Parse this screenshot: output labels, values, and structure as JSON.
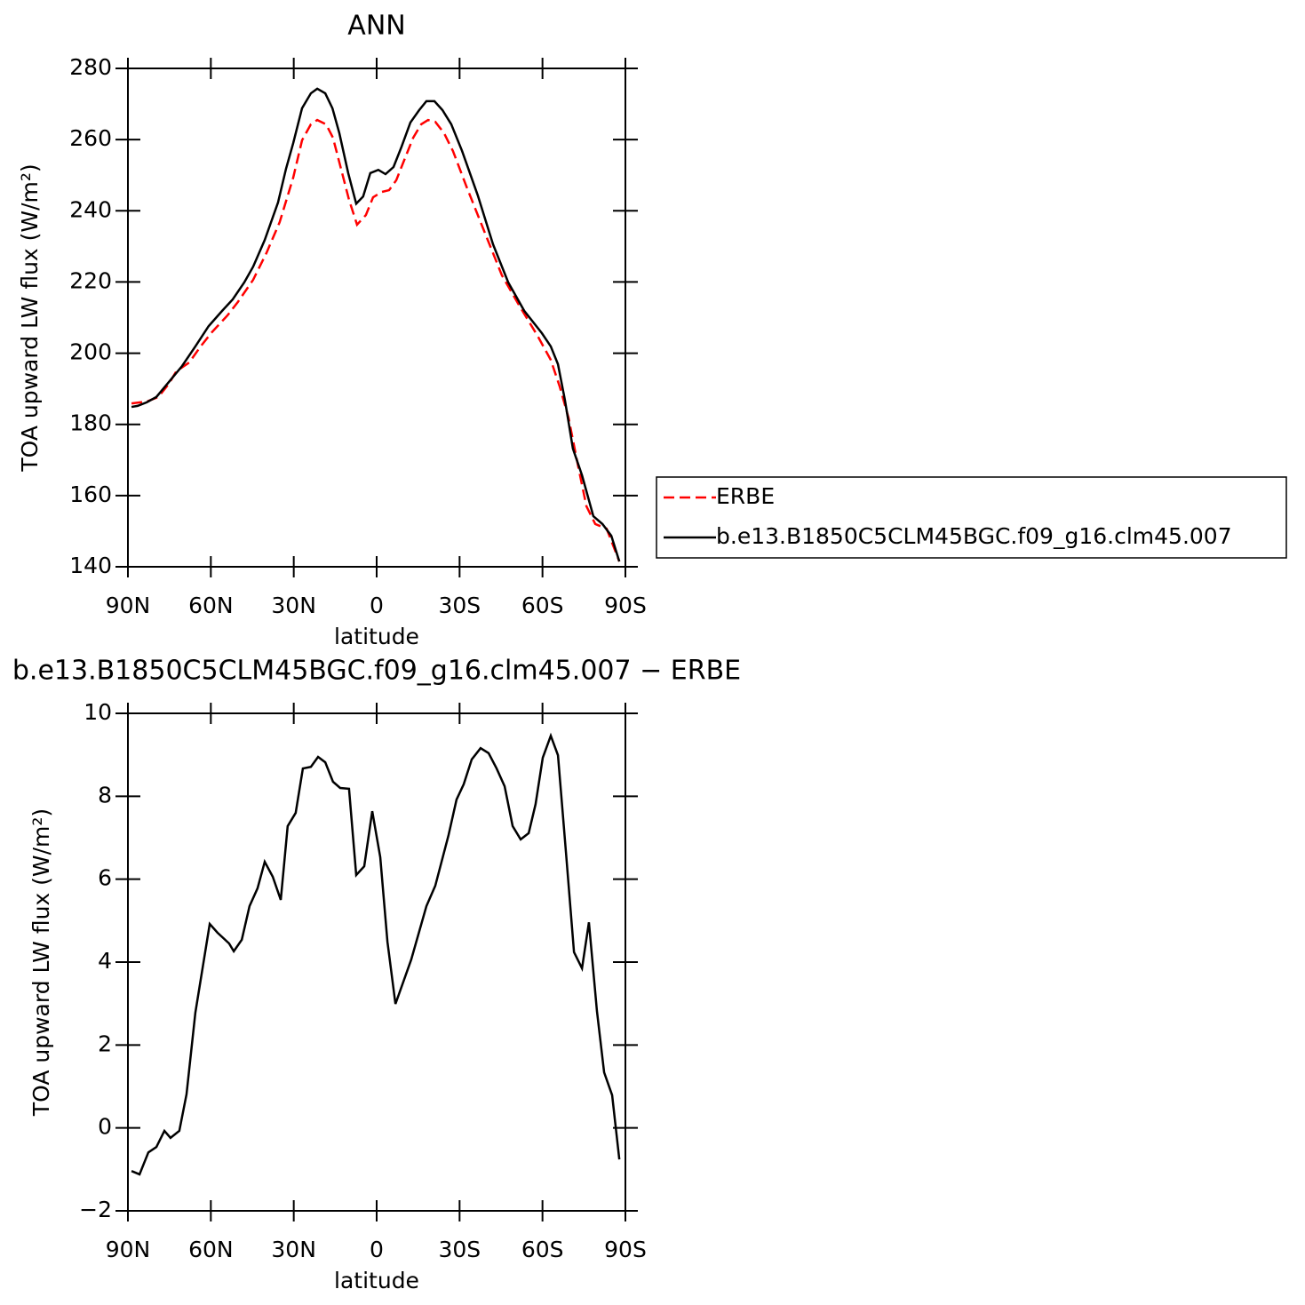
{
  "chart_data": [
    {
      "type": "line",
      "title": "ANN",
      "x_label": "latitude",
      "y_label": "TOA upward LW flux (W/m²)",
      "xlim": [
        90,
        -90
      ],
      "xticks": [
        {
          "value": 90,
          "label": "90N"
        },
        {
          "value": 60,
          "label": "60N"
        },
        {
          "value": 30,
          "label": "30N"
        },
        0,
        {
          "value": -30,
          "label": "30S"
        },
        {
          "value": -60,
          "label": "60S"
        },
        {
          "value": -90,
          "label": "90S"
        }
      ],
      "ylim": [
        140,
        280
      ],
      "yticks": [
        140,
        160,
        180,
        200,
        220,
        240,
        260,
        280
      ],
      "series": [
        {
          "name": "ERBE",
          "color": "#ff0000",
          "style": "dashed",
          "x": [
            88.7,
            83.2,
            79,
            75.2,
            72.5,
            67.8,
            63.7,
            59.6,
            54,
            50.2,
            44.7,
            39.9,
            35.1,
            30.2,
            27,
            23.8,
            21.5,
            18.3,
            15.8,
            12.9,
            10,
            7.1,
            3.9,
            1.3,
            -1.9,
            -4.5,
            -7.1,
            -10,
            -13.2,
            -16.1,
            -18.6,
            -21.2,
            -24.4,
            -27.6,
            -32.5,
            -38.9,
            -45.3,
            -51.8,
            -58.2,
            -63,
            -66.2,
            -69.4,
            -72.6,
            -75.9,
            -79.1,
            -83.2,
            -87.8
          ],
          "values": [
            185.9,
            186.4,
            187.7,
            191.4,
            194.9,
            197.4,
            201.9,
            205.9,
            210.6,
            214.4,
            220.6,
            228.1,
            236.8,
            249.3,
            259.8,
            264.3,
            265.5,
            264.3,
            260.5,
            251.8,
            243.1,
            236.1,
            238.8,
            243.8,
            245.3,
            245.8,
            248.6,
            254.3,
            260.5,
            264.3,
            265.5,
            265,
            261.8,
            256.8,
            246.8,
            234.3,
            221.9,
            213.1,
            204.9,
            198.1,
            190.7,
            181.9,
            169.4,
            157,
            152,
            150.7,
            141.5
          ]
        },
        {
          "name": "b.e13.B1850C5CLM45BGC.f09_g16.clm45.007",
          "color": "#000000",
          "style": "solid",
          "x": [
            88.7,
            86.5,
            83.2,
            79.7,
            75.2,
            70.4,
            65.6,
            60.8,
            55.9,
            52.1,
            47.9,
            44.7,
            40.5,
            35.7,
            32.8,
            30.2,
            27,
            23.8,
            21.5,
            18.6,
            16,
            13.5,
            10.3,
            7.4,
            4.9,
            2.3,
            -0.6,
            -3.2,
            -6.1,
            -9,
            -12.2,
            -15.4,
            -18,
            -20.9,
            -23.8,
            -27,
            -30.9,
            -36.6,
            -42.1,
            -47.6,
            -53.4,
            -59.8,
            -63,
            -65.6,
            -68.1,
            -71,
            -74.3,
            -78.4,
            -81.7,
            -84.9,
            -87.8
          ],
          "values": [
            184.9,
            185.2,
            186.2,
            187.7,
            191.9,
            196.4,
            201.9,
            207.6,
            211.9,
            215.1,
            219.9,
            224.3,
            231.8,
            242.3,
            251.8,
            259,
            268.8,
            273,
            274.3,
            273,
            268.8,
            261.8,
            250.6,
            242,
            244,
            250.6,
            251.5,
            250.3,
            252.3,
            258,
            264.8,
            268.3,
            270.8,
            270.8,
            268.3,
            264.3,
            256.8,
            244.3,
            230.6,
            219.9,
            211.9,
            205.6,
            201.9,
            196.9,
            186.9,
            173.2,
            165.7,
            154.2,
            152,
            148.7,
            141.5
          ]
        }
      ]
    },
    {
      "type": "line",
      "title": "b.e13.B1850C5CLM45BGC.f09_g16.clm45.007 − ERBE",
      "x_label": "latitude",
      "y_label": "TOA upward LW flux (W/m²)",
      "xlim": [
        90,
        -90
      ],
      "xticks": [
        {
          "value": 90,
          "label": "90N"
        },
        {
          "value": 60,
          "label": "60N"
        },
        {
          "value": 30,
          "label": "30N"
        },
        0,
        {
          "value": -30,
          "label": "30S"
        },
        {
          "value": -60,
          "label": "60S"
        },
        {
          "value": -90,
          "label": "90S"
        }
      ],
      "ylim": [
        -2,
        10
      ],
      "yticks": [
        {
          "value": -2,
          "label": "−2"
        },
        0,
        2,
        4,
        6,
        8,
        10
      ],
      "series": [
        {
          "color": "#000000",
          "style": "solid",
          "x": [
            88.7,
            85.8,
            82.6,
            79.7,
            76.8,
            74.6,
            71.4,
            68.8,
            65.6,
            60.4,
            57.6,
            53.4,
            51.7,
            48.8,
            46,
            43.1,
            40.5,
            37.6,
            34.7,
            32.2,
            29.3,
            26.7,
            23.8,
            21.2,
            18.6,
            15.8,
            13.2,
            10,
            7.4,
            4.5,
            1.6,
            -1.3,
            -3.9,
            -6.8,
            -12.5,
            -18,
            -21.2,
            -26,
            -28.9,
            -31.5,
            -34.4,
            -37.6,
            -40.5,
            -43.4,
            -46.3,
            -49.2,
            -52.1,
            -55,
            -57.5,
            -60.1,
            -63,
            -65.6,
            -68.5,
            -71.4,
            -74.3,
            -76.8,
            -79.7,
            -82.3,
            -85.2,
            -87.8
          ],
          "values": [
            -1.04,
            -1.12,
            -0.59,
            -0.46,
            -0.07,
            -0.24,
            -0.07,
            0.81,
            2.78,
            4.92,
            4.71,
            4.45,
            4.26,
            4.54,
            5.35,
            5.78,
            6.42,
            6.06,
            5.5,
            7.28,
            7.6,
            8.67,
            8.71,
            8.95,
            8.82,
            8.35,
            8.2,
            8.18,
            6.1,
            6.31,
            7.64,
            6.53,
            4.49,
            2.99,
            4.06,
            5.35,
            5.84,
            7.06,
            7.92,
            8.29,
            8.89,
            9.16,
            9.04,
            8.67,
            8.24,
            7.28,
            6.96,
            7.11,
            7.81,
            8.93,
            9.46,
            8.99,
            6.64,
            4.24,
            3.85,
            4.96,
            2.82,
            1.34,
            0.79,
            -0.76
          ]
        }
      ]
    }
  ]
}
